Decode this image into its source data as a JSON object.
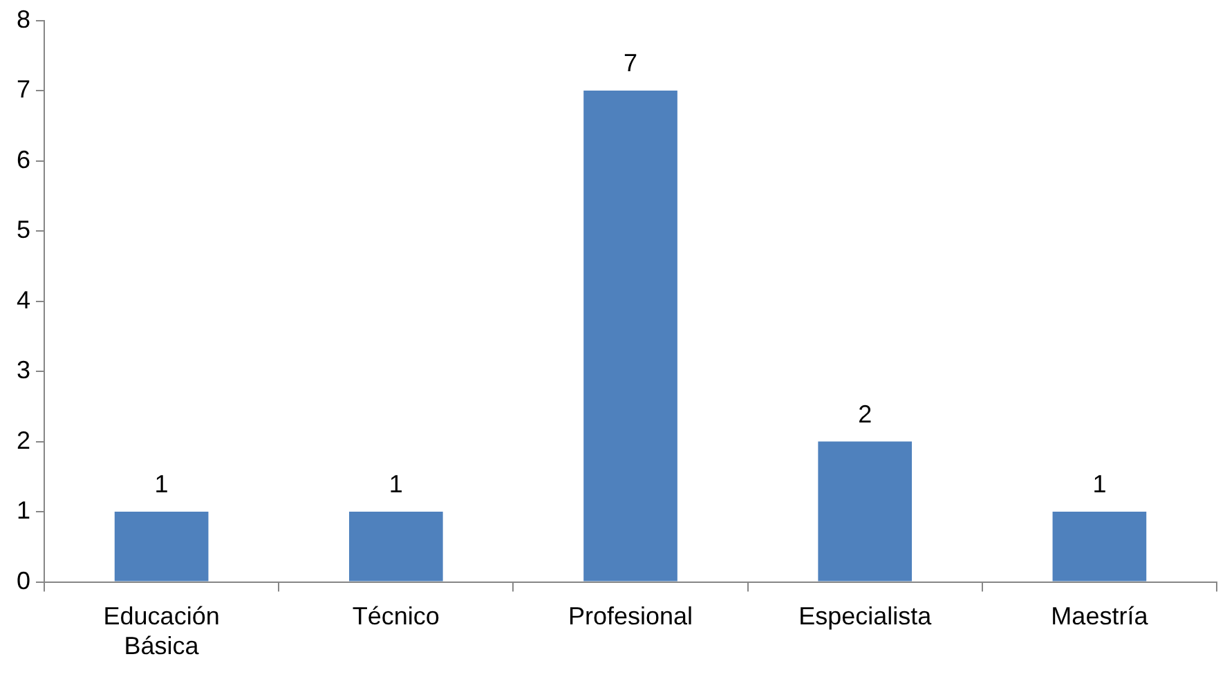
{
  "chart_data": {
    "type": "bar",
    "categories": [
      "Educación Básica",
      "Técnico",
      "Profesional",
      "Especialista",
      "Maestría"
    ],
    "values": [
      1,
      1,
      7,
      2,
      1
    ],
    "color": "#4f81bd",
    "ylim": [
      0,
      8
    ],
    "yticks": [
      0,
      1,
      2,
      3,
      4,
      5,
      6,
      7,
      8
    ],
    "grid": false,
    "legend": false,
    "data_labels": true
  }
}
